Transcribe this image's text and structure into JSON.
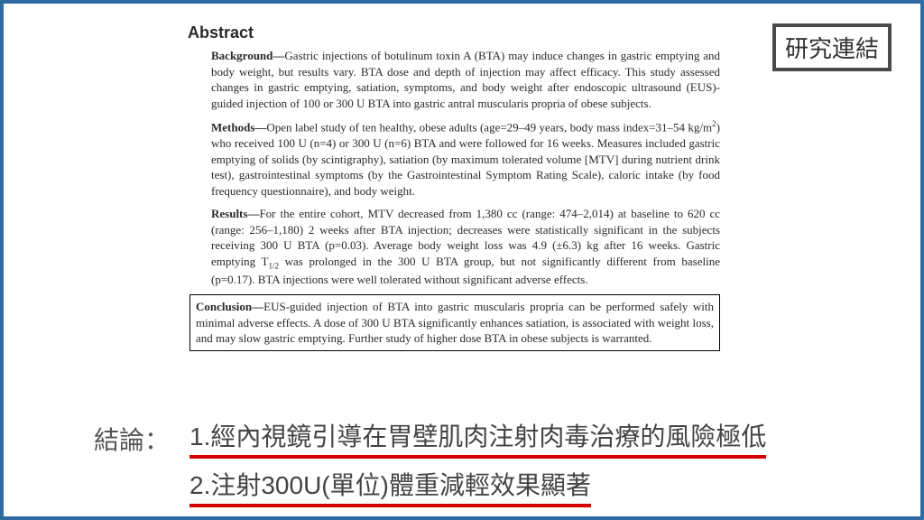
{
  "frame": {
    "border_color": "#2e6ca4",
    "background": "#ffffff"
  },
  "research_link": {
    "label": "研究連結",
    "border_color": "#4a4a4a"
  },
  "abstract": {
    "title": "Abstract",
    "sections": {
      "background": {
        "label": "Background—",
        "text": "Gastric injections of botulinum toxin A (BTA) may induce changes in gastric emptying and body weight, but results vary. BTA dose and depth of injection may affect efficacy. This study assessed changes in gastric emptying, satiation, symptoms, and body weight after endoscopic ultrasound (EUS)-guided injection of 100 or 300 U BTA into gastric antral muscularis propria of obese subjects."
      },
      "methods": {
        "label": "Methods—",
        "text_pre": "Open label study of ten healthy, obese adults (age=29–49 years, body mass index=31–54 kg/m",
        "sup": "2",
        "text_post": ") who received 100 U (n=4) or 300 U (n=6) BTA and were followed for 16 weeks. Measures included gastric emptying of solids (by scintigraphy), satiation (by maximum tolerated volume [MTV] during nutrient drink test), gastrointestinal symptoms (by the Gastrointestinal Symptom Rating Scale), caloric intake (by food frequency questionnaire), and body weight."
      },
      "results": {
        "label": "Results—",
        "text_pre": "For the entire cohort, MTV decreased from 1,380 cc (range: 474–2,014) at baseline to 620 cc (range: 256–1,180) 2 weeks after BTA injection; decreases were statistically significant in the subjects receiving 300 U BTA (p=0.03). Average body weight loss was 4.9 (±6.3) kg after 16 weeks. Gastric emptying T",
        "sub": "1/2",
        "text_post": " was prolonged in the 300 U BTA group, but not significantly different from baseline (p=0.17). BTA injections were well tolerated without significant adverse effects."
      },
      "conclusion": {
        "label": "Conclusion—",
        "text": "EUS-guided injection of BTA into gastric muscularis propria can be performed safely with minimal adverse effects. A dose of 300 U BTA significantly enhances satiation, is associated with weight loss, and may slow gastric emptying. Further study of higher dose BTA in obese subjects is warranted."
      }
    }
  },
  "summary": {
    "label": "結論：",
    "underline_color": "#d40000",
    "lines": {
      "l1": "1.經內視鏡引導在胃壁肌肉注射肉毒治療的風險極低",
      "l2": "2.注射300U(單位)體重減輕效果顯著"
    }
  }
}
